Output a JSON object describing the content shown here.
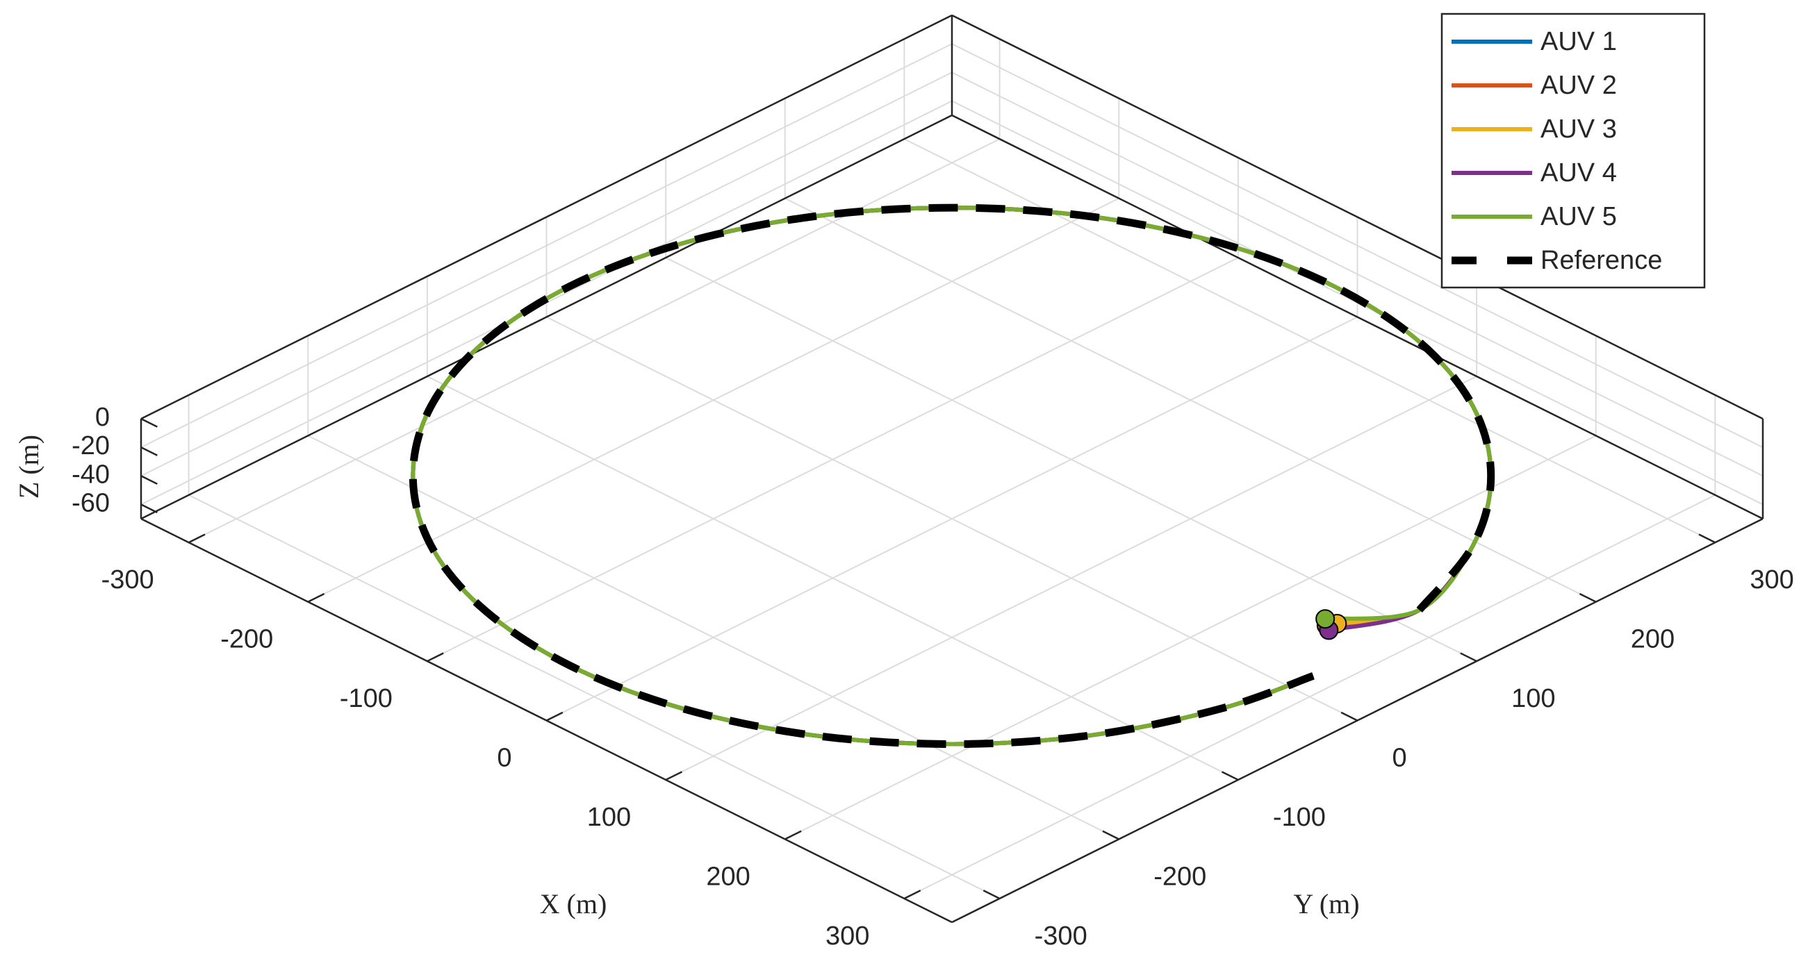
{
  "chart_data": {
    "type": "line3d",
    "xlabel": "X (m)",
    "ylabel": "Y (m)",
    "zlabel": "Z (m)",
    "xlim": [
      -340,
      340
    ],
    "ylim": [
      -340,
      340
    ],
    "zlim": [
      -70,
      0
    ],
    "xticks": [
      -300,
      -200,
      -100,
      0,
      100,
      200,
      300
    ],
    "yticks": [
      -300,
      -200,
      -100,
      0,
      100,
      200,
      300
    ],
    "zticks": [
      0,
      -20,
      -40,
      -60
    ],
    "grid": true,
    "legend": "northeast",
    "marker_at_start": true,
    "series": [
      {
        "name": "AUV 1",
        "color": "#0072BD",
        "style": "solid",
        "x": [
          285,
          309,
          277,
          226,
          160,
          83,
          0,
          -83,
          -160,
          -226,
          -277,
          -309,
          -320,
          -309,
          -277,
          -226,
          -160,
          -83,
          0,
          83,
          160,
          226,
          277,
          309,
          320
        ],
        "y": [
          33,
          83,
          160,
          226,
          277,
          309,
          320,
          309,
          277,
          226,
          160,
          83,
          0,
          -83,
          -160,
          -226,
          -277,
          -309,
          -320,
          -309,
          -277,
          -226,
          -160,
          -83,
          -17
        ],
        "z": [
          -40,
          -40,
          -40,
          -40,
          -40,
          -40,
          -40,
          -40,
          -40,
          -40,
          -40,
          -40,
          -40,
          -40,
          -40,
          -40,
          -40,
          -40,
          -40,
          -40,
          -40,
          -40,
          -40,
          -40,
          -40
        ]
      },
      {
        "name": "AUV 2",
        "color": "#D95319",
        "style": "solid",
        "x": [
          283,
          309,
          277,
          226,
          160,
          83,
          0,
          -83,
          -160,
          -226,
          -277,
          -309,
          -320,
          -309,
          -277,
          -226,
          -160,
          -83,
          0,
          83,
          160,
          226,
          277,
          309,
          320
        ],
        "y": [
          31,
          83,
          160,
          226,
          277,
          309,
          320,
          309,
          277,
          226,
          160,
          83,
          0,
          -83,
          -160,
          -226,
          -277,
          -309,
          -320,
          -309,
          -277,
          -226,
          -160,
          -83,
          -17
        ],
        "z": [
          -40,
          -40,
          -40,
          -40,
          -40,
          -40,
          -40,
          -40,
          -40,
          -40,
          -40,
          -40,
          -40,
          -40,
          -40,
          -40,
          -40,
          -40,
          -40,
          -40,
          -40,
          -40,
          -40,
          -40,
          -40
        ]
      },
      {
        "name": "AUV 3",
        "color": "#EDB120",
        "style": "solid",
        "x": [
          286,
          309,
          277,
          226,
          160,
          83,
          0,
          -83,
          -160,
          -226,
          -277,
          -309,
          -320,
          -309,
          -277,
          -226,
          -160,
          -83,
          0,
          83,
          160,
          226,
          277,
          309,
          320
        ],
        "y": [
          37,
          83,
          160,
          226,
          277,
          309,
          320,
          309,
          277,
          226,
          160,
          83,
          0,
          -83,
          -160,
          -226,
          -277,
          -309,
          -320,
          -309,
          -277,
          -226,
          -160,
          -83,
          -17
        ],
        "z": [
          -40,
          -40,
          -40,
          -40,
          -40,
          -40,
          -40,
          -40,
          -40,
          -40,
          -40,
          -40,
          -40,
          -40,
          -40,
          -40,
          -40,
          -40,
          -40,
          -40,
          -40,
          -40,
          -40,
          -40,
          -40
        ]
      },
      {
        "name": "AUV 4",
        "color": "#7E2F8E",
        "style": "solid",
        "x": [
          288,
          309,
          277,
          226,
          160,
          83,
          0,
          -83,
          -160,
          -226,
          -277,
          -309,
          -320,
          -309,
          -277,
          -226,
          -160,
          -83,
          0,
          83,
          160,
          226,
          277,
          309,
          320
        ],
        "y": [
          28,
          83,
          160,
          226,
          277,
          309,
          320,
          309,
          277,
          226,
          160,
          83,
          0,
          -83,
          -160,
          -226,
          -277,
          -309,
          -320,
          -309,
          -277,
          -226,
          -160,
          -83,
          -17
        ],
        "z": [
          -40,
          -40,
          -40,
          -40,
          -40,
          -40,
          -40,
          -40,
          -40,
          -40,
          -40,
          -40,
          -40,
          -40,
          -40,
          -40,
          -40,
          -40,
          -40,
          -40,
          -40,
          -40,
          -40,
          -40,
          -40
        ]
      },
      {
        "name": "AUV 5",
        "color": "#77AC30",
        "style": "solid",
        "x": [
          277,
          309,
          277,
          226,
          160,
          83,
          0,
          -83,
          -160,
          -226,
          -277,
          -309,
          -320,
          -309,
          -277,
          -226,
          -160,
          -83,
          0,
          83,
          160,
          226,
          277,
          309,
          320
        ],
        "y": [
          36,
          83,
          160,
          226,
          277,
          309,
          320,
          309,
          277,
          226,
          160,
          83,
          0,
          -83,
          -160,
          -226,
          -277,
          -309,
          -320,
          -309,
          -277,
          -226,
          -160,
          -83,
          -17
        ],
        "z": [
          -40,
          -40,
          -40,
          -40,
          -40,
          -40,
          -40,
          -40,
          -40,
          -40,
          -40,
          -40,
          -40,
          -40,
          -40,
          -40,
          -40,
          -40,
          -40,
          -40,
          -40,
          -40,
          -40,
          -40,
          -40
        ]
      },
      {
        "name": "Reference",
        "color": "#000000",
        "style": "dashed",
        "x": [
          309,
          277,
          226,
          160,
          83,
          0,
          -83,
          -160,
          -226,
          -277,
          -309,
          -320,
          -309,
          -277,
          -226,
          -160,
          -83,
          0,
          83,
          160,
          226,
          277,
          309,
          320
        ],
        "y": [
          83,
          160,
          226,
          277,
          309,
          320,
          309,
          277,
          226,
          160,
          83,
          0,
          -83,
          -160,
          -226,
          -277,
          -309,
          -320,
          -309,
          -277,
          -226,
          -160,
          -83,
          -17
        ],
        "z": [
          -40,
          -40,
          -40,
          -40,
          -40,
          -40,
          -40,
          -40,
          -40,
          -40,
          -40,
          -40,
          -40,
          -40,
          -40,
          -40,
          -40,
          -40,
          -40,
          -40,
          -40,
          -40,
          -40,
          -40
        ]
      }
    ]
  }
}
